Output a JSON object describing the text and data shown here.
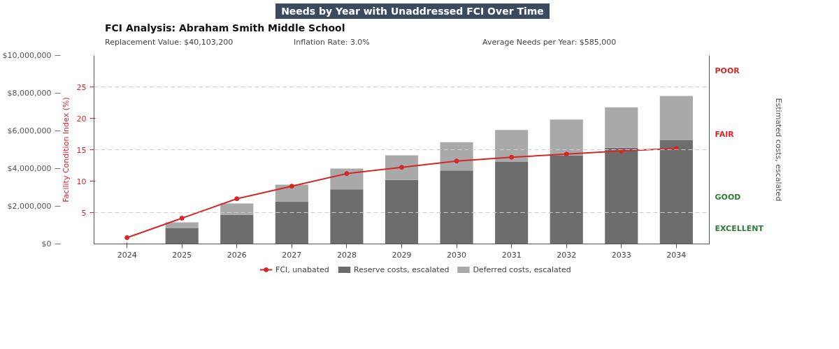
{
  "chart_data": {
    "type": "bar",
    "title": "Needs by Year with Unaddressed FCI Over Time",
    "subtitle": "FCI Analysis: Abraham Smith Middle School",
    "annotations": [
      "Replacement Value: $40,103,200",
      "Inflation Rate: 3.0%",
      "Average Needs per Year: $585,000",
      "EXCELLENT",
      "GOOD",
      "FAIR",
      "POOR"
    ],
    "categories": [
      "2024",
      "2025",
      "2026",
      "2027",
      "2028",
      "2029",
      "2030",
      "2031",
      "2032",
      "2033",
      "2034"
    ],
    "stacked": true,
    "marker": "circle",
    "legend": "bottom",
    "series": [
      {
        "name": "FCI, unabated",
        "type": "line",
        "axis": "y2",
        "color": "#d62728",
        "values": [
          1.0,
          4.1,
          7.2,
          9.2,
          11.2,
          12.2,
          13.2,
          13.8,
          14.3,
          14.8,
          15.2
        ]
      },
      {
        "name": "Reserve costs, escalated",
        "color": "#6d6d6d",
        "values": [
          null,
          850000,
          1550000,
          2250000,
          2900000,
          3400000,
          3900000,
          4350000,
          4700000,
          5100000,
          5500000
        ]
      },
      {
        "name": "Deferred costs, escalated",
        "color": "#a9a9a9",
        "values": [
          null,
          300000,
          600000,
          900000,
          1100000,
          1300000,
          1500000,
          1700000,
          1900000,
          2150000,
          2350000
        ]
      }
    ],
    "ylim": [
      0,
      10000000
    ],
    "yticks": [
      {
        "value": 0,
        "label": "$0"
      },
      {
        "value": 2000000,
        "label": "$2,000,000"
      },
      {
        "value": 4000000,
        "label": "$4,000,000"
      },
      {
        "value": 6000000,
        "label": "$6,000,000"
      },
      {
        "value": 8000000,
        "label": "$8,000,000"
      },
      {
        "value": 10000000,
        "label": "$10,000,000"
      }
    ],
    "y2lim": [
      0,
      30
    ],
    "y2ticks": [
      5,
      10,
      15,
      20,
      25
    ],
    "y2label": "Facility Condition Index (%)",
    "y3label": "Estimated costs, escalated",
    "ref_lines": [
      {
        "axis": "y2",
        "value": 5,
        "color": "#cccccc",
        "line_style": "dashed"
      },
      {
        "axis": "y2",
        "value": 15,
        "color": "#cccccc",
        "line_style": "dashed"
      },
      {
        "axis": "y2",
        "value": 25,
        "color": "#cccccc",
        "line_style": "dashed"
      }
    ]
  }
}
